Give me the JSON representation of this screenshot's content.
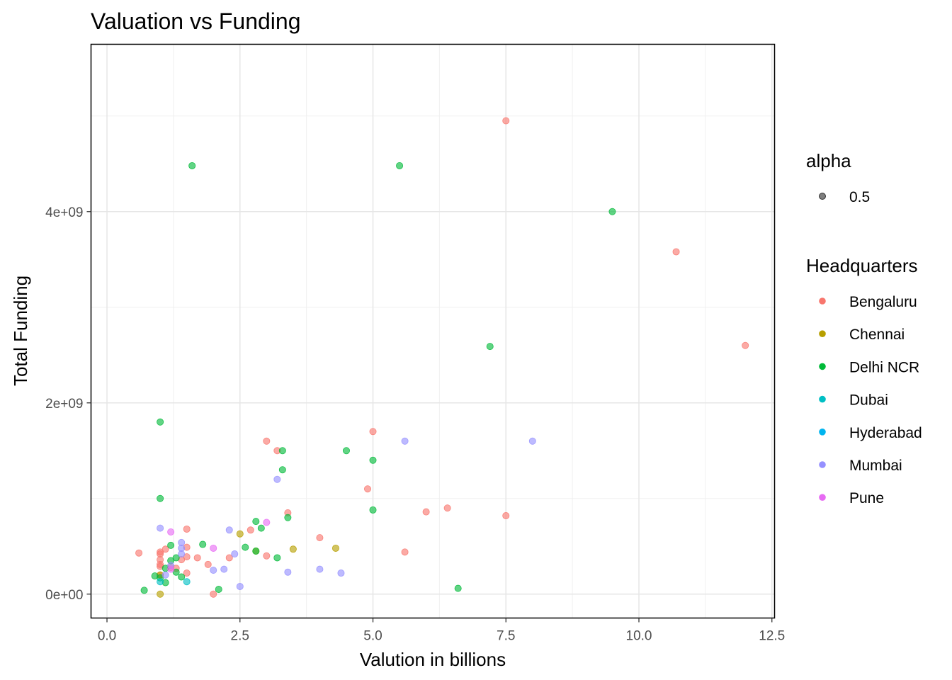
{
  "chart_data": {
    "type": "scatter",
    "title": "Valuation vs Funding",
    "xlabel": "Valution in billions",
    "ylabel": "Total Funding",
    "xlim": [
      -0.3,
      12.55
    ],
    "ylim": [
      -250000000,
      5750000000
    ],
    "x_ticks": [
      0,
      2.5,
      5,
      7.5,
      10,
      12.5
    ],
    "x_tick_labels": [
      "0.0",
      "2.5",
      "5.0",
      "7.5",
      "10.0",
      "12.5"
    ],
    "y_ticks": [
      0,
      2000000000,
      4000000000
    ],
    "y_tick_labels": [
      "0e+00",
      "2e+09",
      "4e+09"
    ],
    "grid": true,
    "legend_position": "right",
    "alpha_legend": {
      "title": "alpha",
      "label": "0.5"
    },
    "legend": {
      "title": "Headquarters"
    },
    "series": [
      {
        "name": "Bengaluru",
        "color": "#F8766D",
        "points": [
          [
            7.5,
            4950000000
          ],
          [
            10.7,
            3580000000
          ],
          [
            12.0,
            2600000000
          ],
          [
            3.0,
            1600000000
          ],
          [
            5.0,
            1700000000
          ],
          [
            3.2,
            1500000000
          ],
          [
            4.9,
            1100000000
          ],
          [
            6.4,
            900000000
          ],
          [
            6.0,
            860000000
          ],
          [
            7.5,
            820000000
          ],
          [
            3.4,
            850000000
          ],
          [
            2.7,
            670000000
          ],
          [
            4.0,
            590000000
          ],
          [
            5.6,
            440000000
          ],
          [
            3.0,
            400000000
          ],
          [
            2.3,
            380000000
          ],
          [
            1.9,
            310000000
          ],
          [
            1.5,
            680000000
          ],
          [
            1.5,
            490000000
          ],
          [
            1.5,
            390000000
          ],
          [
            1.5,
            220000000
          ],
          [
            1.4,
            360000000
          ],
          [
            1.3,
            270000000
          ],
          [
            1.2,
            280000000
          ],
          [
            1.1,
            470000000
          ],
          [
            1.0,
            440000000
          ],
          [
            1.0,
            420000000
          ],
          [
            1.0,
            360000000
          ],
          [
            1.0,
            310000000
          ],
          [
            1.0,
            290000000
          ],
          [
            1.0,
            200000000
          ],
          [
            0.6,
            430000000
          ],
          [
            2.0,
            0
          ],
          [
            1.7,
            380000000
          ]
        ]
      },
      {
        "name": "Chennai",
        "color": "#B79F00",
        "points": [
          [
            2.5,
            630000000
          ],
          [
            4.3,
            480000000
          ],
          [
            3.5,
            470000000
          ],
          [
            2.8,
            450000000
          ],
          [
            1.0,
            0
          ],
          [
            1.0,
            200000000
          ]
        ]
      },
      {
        "name": "Delhi NCR",
        "color": "#00BA38",
        "points": [
          [
            1.6,
            4480000000
          ],
          [
            5.5,
            4480000000
          ],
          [
            9.5,
            4000000000
          ],
          [
            7.2,
            2590000000
          ],
          [
            1.0,
            1800000000
          ],
          [
            3.3,
            1500000000
          ],
          [
            4.5,
            1500000000
          ],
          [
            5.0,
            1400000000
          ],
          [
            3.3,
            1300000000
          ],
          [
            1.0,
            1000000000
          ],
          [
            5.0,
            880000000
          ],
          [
            3.4,
            800000000
          ],
          [
            2.8,
            760000000
          ],
          [
            2.9,
            690000000
          ],
          [
            1.8,
            520000000
          ],
          [
            2.6,
            490000000
          ],
          [
            3.2,
            380000000
          ],
          [
            1.2,
            510000000
          ],
          [
            1.3,
            380000000
          ],
          [
            1.2,
            350000000
          ],
          [
            1.1,
            270000000
          ],
          [
            1.1,
            120000000
          ],
          [
            1.3,
            230000000
          ],
          [
            1.4,
            180000000
          ],
          [
            1.0,
            170000000
          ],
          [
            0.9,
            190000000
          ],
          [
            0.7,
            40000000
          ],
          [
            2.1,
            50000000
          ],
          [
            6.6,
            60000000
          ],
          [
            2.8,
            450000000
          ]
        ]
      },
      {
        "name": "Dubai",
        "color": "#00BFC4",
        "points": [
          [
            1.5,
            130000000
          ],
          [
            1.0,
            130000000
          ]
        ]
      },
      {
        "name": "Hyderabad",
        "color": "#00B4EF",
        "points": []
      },
      {
        "name": "Mumbai",
        "color": "#9590FF",
        "points": [
          [
            5.6,
            1600000000
          ],
          [
            8.0,
            1600000000
          ],
          [
            3.2,
            1200000000
          ],
          [
            2.3,
            670000000
          ],
          [
            1.0,
            690000000
          ],
          [
            1.4,
            540000000
          ],
          [
            1.4,
            480000000
          ],
          [
            2.4,
            420000000
          ],
          [
            1.4,
            420000000
          ],
          [
            2.0,
            250000000
          ],
          [
            2.2,
            260000000
          ],
          [
            4.0,
            260000000
          ],
          [
            3.4,
            230000000
          ],
          [
            4.4,
            220000000
          ],
          [
            2.5,
            80000000
          ],
          [
            1.2,
            300000000
          ],
          [
            1.1,
            200000000
          ]
        ]
      },
      {
        "name": "Pune",
        "color": "#E76BF3",
        "points": [
          [
            3.0,
            750000000
          ],
          [
            1.2,
            650000000
          ],
          [
            2.0,
            480000000
          ],
          [
            1.2,
            260000000
          ]
        ]
      }
    ]
  }
}
